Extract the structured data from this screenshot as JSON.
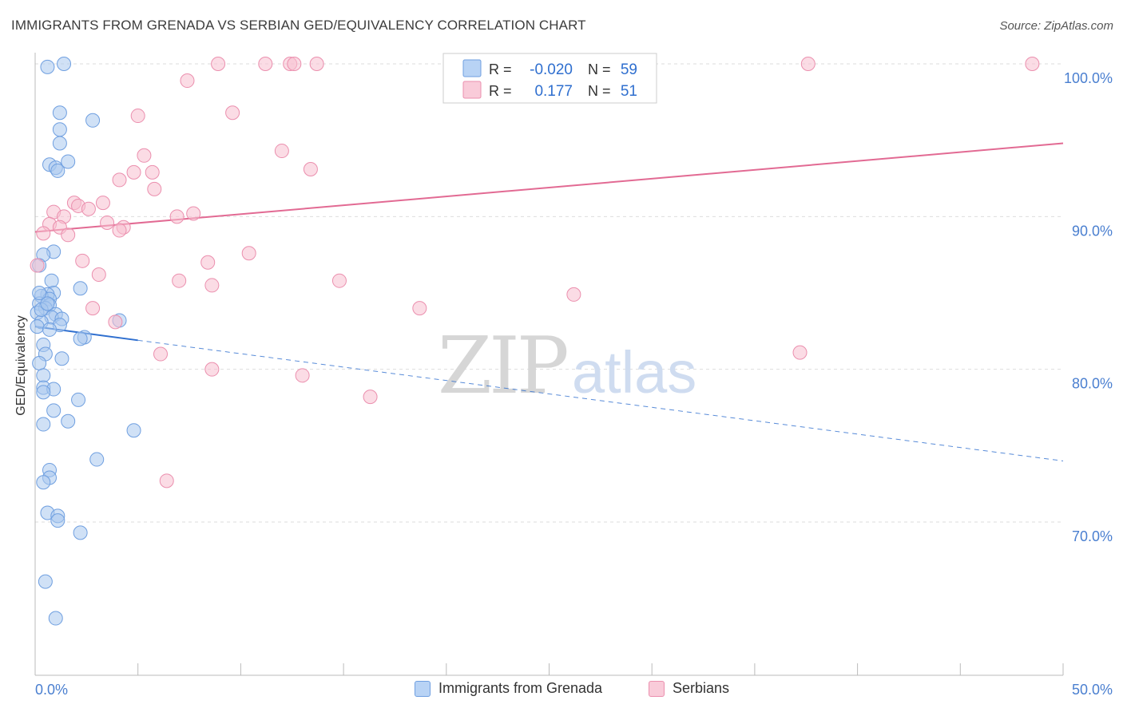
{
  "title": "IMMIGRANTS FROM GRENADA VS SERBIAN GED/EQUIVALENCY CORRELATION CHART",
  "source": "Source: ZipAtlas.com",
  "watermark": {
    "zip": "ZIP",
    "atlas": "atlas"
  },
  "colors": {
    "blue_fill": "#a9c8ef",
    "blue_stroke": "#6f9fe0",
    "blue_line": "#2f6fcf",
    "pink_fill": "#f7bfd0",
    "pink_stroke": "#eb8fae",
    "pink_line": "#e26a93",
    "axis_text": "#4a7fd0",
    "grid": "#dddddd"
  },
  "legend_top": [
    {
      "r_label": "R =",
      "r_value": "-0.020",
      "n_label": "N =",
      "n_value": "59"
    },
    {
      "r_label": "R =",
      "r_value": "0.177",
      "n_label": "N =",
      "n_value": "51"
    }
  ],
  "legend_bottom": [
    "Immigrants from Grenada",
    "Serbians"
  ],
  "chart_data": {
    "type": "scatter",
    "xlabel": "",
    "ylabel": "GED/Equivalency",
    "xlim": [
      0,
      50
    ],
    "ylim": [
      60.5,
      101
    ],
    "x_tick_labels": [
      "0.0%",
      "50.0%"
    ],
    "y_ticks": [
      70,
      80,
      90,
      100
    ],
    "y_tick_labels": [
      "70.0%",
      "80.0%",
      "90.0%",
      "100.0%"
    ],
    "grid": "horizontal dashed",
    "series": [
      {
        "name": "Immigrants from Grenada",
        "color": "blue",
        "trend": {
          "x": [
            0,
            5
          ],
          "y": [
            82.8,
            81.9
          ],
          "extended_to_x": 50,
          "extended_y": 74.0
        },
        "points": [
          [
            0.6,
            99.8
          ],
          [
            1.4,
            100.0
          ],
          [
            1.2,
            96.8
          ],
          [
            2.8,
            96.3
          ],
          [
            1.2,
            95.7
          ],
          [
            1.2,
            94.8
          ],
          [
            1.6,
            93.6
          ],
          [
            0.7,
            93.4
          ],
          [
            1.0,
            93.2
          ],
          [
            1.1,
            93.0
          ],
          [
            0.9,
            87.7
          ],
          [
            0.4,
            87.5
          ],
          [
            0.2,
            86.8
          ],
          [
            0.8,
            85.8
          ],
          [
            2.2,
            85.3
          ],
          [
            0.9,
            85.0
          ],
          [
            0.6,
            84.9
          ],
          [
            0.3,
            84.8
          ],
          [
            0.7,
            84.6
          ],
          [
            0.2,
            84.3
          ],
          [
            0.7,
            84.2
          ],
          [
            0.5,
            84.0
          ],
          [
            0.1,
            83.7
          ],
          [
            1.0,
            83.6
          ],
          [
            0.8,
            83.4
          ],
          [
            1.3,
            83.3
          ],
          [
            4.1,
            83.2
          ],
          [
            0.3,
            83.1
          ],
          [
            1.2,
            82.9
          ],
          [
            0.1,
            82.8
          ],
          [
            0.7,
            82.6
          ],
          [
            2.4,
            82.1
          ],
          [
            2.2,
            82.0
          ],
          [
            0.4,
            81.6
          ],
          [
            0.5,
            81.0
          ],
          [
            1.3,
            80.7
          ],
          [
            0.2,
            80.4
          ],
          [
            0.4,
            79.6
          ],
          [
            0.4,
            78.8
          ],
          [
            0.9,
            78.7
          ],
          [
            0.4,
            78.5
          ],
          [
            2.1,
            78.0
          ],
          [
            0.9,
            77.3
          ],
          [
            1.6,
            76.6
          ],
          [
            0.4,
            76.4
          ],
          [
            4.8,
            76.0
          ],
          [
            3.0,
            74.1
          ],
          [
            0.7,
            73.4
          ],
          [
            0.7,
            72.9
          ],
          [
            0.4,
            72.6
          ],
          [
            0.6,
            70.6
          ],
          [
            1.1,
            70.4
          ],
          [
            1.1,
            70.1
          ],
          [
            2.2,
            69.3
          ],
          [
            0.5,
            66.1
          ],
          [
            1.0,
            63.7
          ],
          [
            0.3,
            83.9
          ],
          [
            0.6,
            84.3
          ],
          [
            0.2,
            85.0
          ]
        ]
      },
      {
        "name": "Serbians",
        "color": "pink",
        "trend": {
          "x": [
            0,
            50
          ],
          "y": [
            89.0,
            94.8
          ]
        },
        "points": [
          [
            8.9,
            100.0
          ],
          [
            11.2,
            100.0
          ],
          [
            12.4,
            100.0
          ],
          [
            12.6,
            100.0
          ],
          [
            13.7,
            100.0
          ],
          [
            20.6,
            100.0
          ],
          [
            37.6,
            100.0
          ],
          [
            48.5,
            100.0
          ],
          [
            7.4,
            98.9
          ],
          [
            9.6,
            96.8
          ],
          [
            5.0,
            96.6
          ],
          [
            12.0,
            94.3
          ],
          [
            5.3,
            94.0
          ],
          [
            13.4,
            93.1
          ],
          [
            4.8,
            92.9
          ],
          [
            5.7,
            92.9
          ],
          [
            4.1,
            92.4
          ],
          [
            5.8,
            91.8
          ],
          [
            1.9,
            90.9
          ],
          [
            3.3,
            90.9
          ],
          [
            2.1,
            90.7
          ],
          [
            2.6,
            90.5
          ],
          [
            0.9,
            90.3
          ],
          [
            1.4,
            90.0
          ],
          [
            6.9,
            90.0
          ],
          [
            7.7,
            90.2
          ],
          [
            3.5,
            89.6
          ],
          [
            0.7,
            89.5
          ],
          [
            1.2,
            89.3
          ],
          [
            4.3,
            89.3
          ],
          [
            4.1,
            89.1
          ],
          [
            0.4,
            88.9
          ],
          [
            1.6,
            88.8
          ],
          [
            10.4,
            87.6
          ],
          [
            2.3,
            87.1
          ],
          [
            8.4,
            87.0
          ],
          [
            0.1,
            86.8
          ],
          [
            3.1,
            86.2
          ],
          [
            7.0,
            85.8
          ],
          [
            14.8,
            85.8
          ],
          [
            8.6,
            85.5
          ],
          [
            26.2,
            84.9
          ],
          [
            2.8,
            84.0
          ],
          [
            18.7,
            84.0
          ],
          [
            3.9,
            83.1
          ],
          [
            37.2,
            81.1
          ],
          [
            6.1,
            81.0
          ],
          [
            8.6,
            80.0
          ],
          [
            13.0,
            79.6
          ],
          [
            16.3,
            78.2
          ],
          [
            6.4,
            72.7
          ]
        ]
      }
    ]
  }
}
